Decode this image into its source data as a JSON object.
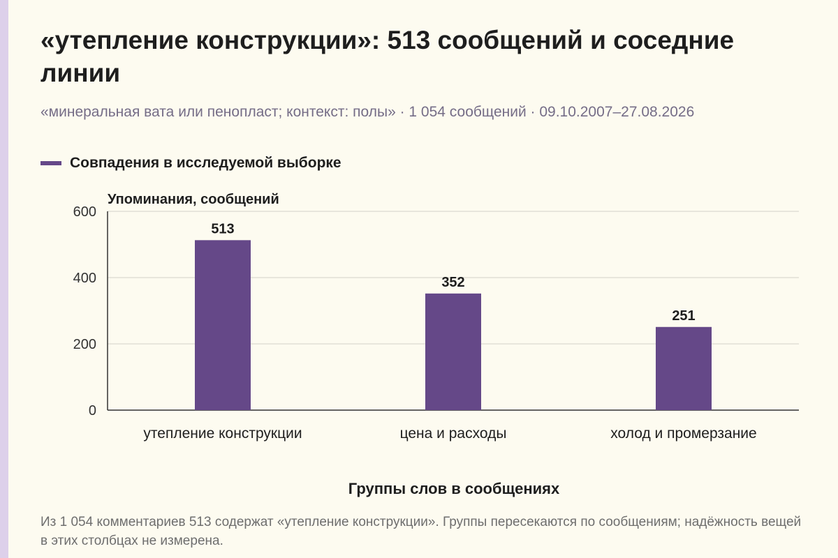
{
  "title": "«утепление конструкции»: 513 сообщений и соседние линии",
  "subtitle": "«минеральная вата или пенопласт; контекст: полы» · 1 054 сообщений · 09.10.2007–27.08.2026",
  "legend": {
    "label": "Совпадения в исследуемой выборке",
    "color": "#654888"
  },
  "note": "Из 1 054 комментариев 513 содержат «утепление конструкции». Группы пересекаются по сообщениям; надёжность вещей в этих столбцах не измерена.",
  "chart_data": {
    "type": "bar",
    "categories": [
      "утепление конструкции",
      "цена и расходы",
      "холод и промерзание"
    ],
    "series": [
      {
        "name": "Совпадения в исследуемой выборке",
        "values": [
          513,
          352,
          251
        ],
        "color": "#654888"
      }
    ],
    "ylabel": "Упоминания, сообщений",
    "xlabel": "Группы слов в сообщениях",
    "ylim": [
      0,
      600
    ],
    "yticks": [
      0,
      200,
      400,
      600
    ],
    "grid": true,
    "legend_position": "top-left"
  }
}
